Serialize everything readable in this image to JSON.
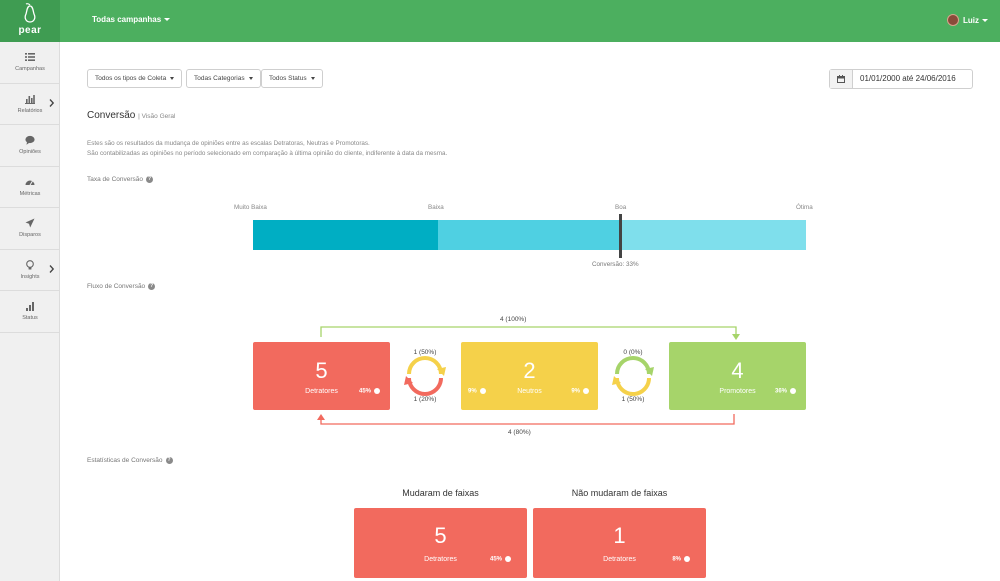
{
  "app": {
    "logo_text": "pear",
    "campaign_selector": "Todas campanhas",
    "user_name": "Luiz"
  },
  "sidebar": {
    "items": [
      {
        "label": "Campanhas",
        "icon": "list-icon",
        "has_arrow": false
      },
      {
        "label": "Relatórios",
        "icon": "bar-chart-icon",
        "has_arrow": true
      },
      {
        "label": "Opiniões",
        "icon": "speech-bubble-icon",
        "has_arrow": false
      },
      {
        "label": "Métricas",
        "icon": "gauge-icon",
        "has_arrow": false
      },
      {
        "label": "Disparos",
        "icon": "paper-plane-icon",
        "has_arrow": false
      },
      {
        "label": "Insights",
        "icon": "lightbulb-icon",
        "has_arrow": true
      },
      {
        "label": "Status",
        "icon": "signal-icon",
        "has_arrow": false
      }
    ]
  },
  "filters": {
    "collection_type": "Todos os tipos de Coleta",
    "categories": "Todas Categorias",
    "status": "Todos Status",
    "date_range": "01/01/2000 até 24/06/2016"
  },
  "page": {
    "title": "Conversão",
    "subtitle": "| Visão Geral",
    "description_line1": "Estes são os resultados da mudança de opiniões entre as escalas Detratoras, Neutras e Promotoras.",
    "description_line2": "São contabilizadas as opiniões no período selecionado em comparação à última opinião do cliente, indiferente à data da mesma."
  },
  "conversion_rate": {
    "label": "Taxa de Conversão",
    "scale": [
      "Muito Baixa",
      "Baixa",
      "Boa",
      "Ótima"
    ],
    "marker_label": "Conversão: 33%",
    "marker_value": 0.33,
    "colors": [
      "#00aec3",
      "#4fd0e2",
      "#7fdfec"
    ]
  },
  "flow": {
    "label": "Fluxo de Conversão",
    "top_arrow": "4 (100%)",
    "bottom_arrow": "4 (80%)",
    "left_top": "1 (50%)",
    "left_bottom": "1 (20%)",
    "right_top": "0 (0%)",
    "right_bottom": "1 (50%)",
    "boxes": [
      {
        "count": "5",
        "name": "Detratores",
        "left_pct": "",
        "right_pct": "45%",
        "color": "#f26a5e"
      },
      {
        "count": "2",
        "name": "Neutros",
        "left_pct": "9%",
        "right_pct": "9%",
        "color": "#f5d14a"
      },
      {
        "count": "4",
        "name": "Promotores",
        "left_pct": "",
        "right_pct": "36%",
        "color": "#a6d46a"
      }
    ]
  },
  "stats": {
    "label": "Estatísticas de Conversão",
    "changed": {
      "title": "Mudaram de faixas",
      "count": "5",
      "name": "Detratores",
      "pct": "45%"
    },
    "unchanged": {
      "title": "Não mudaram de faixas",
      "count": "1",
      "name": "Detratores",
      "pct": "8%"
    }
  }
}
